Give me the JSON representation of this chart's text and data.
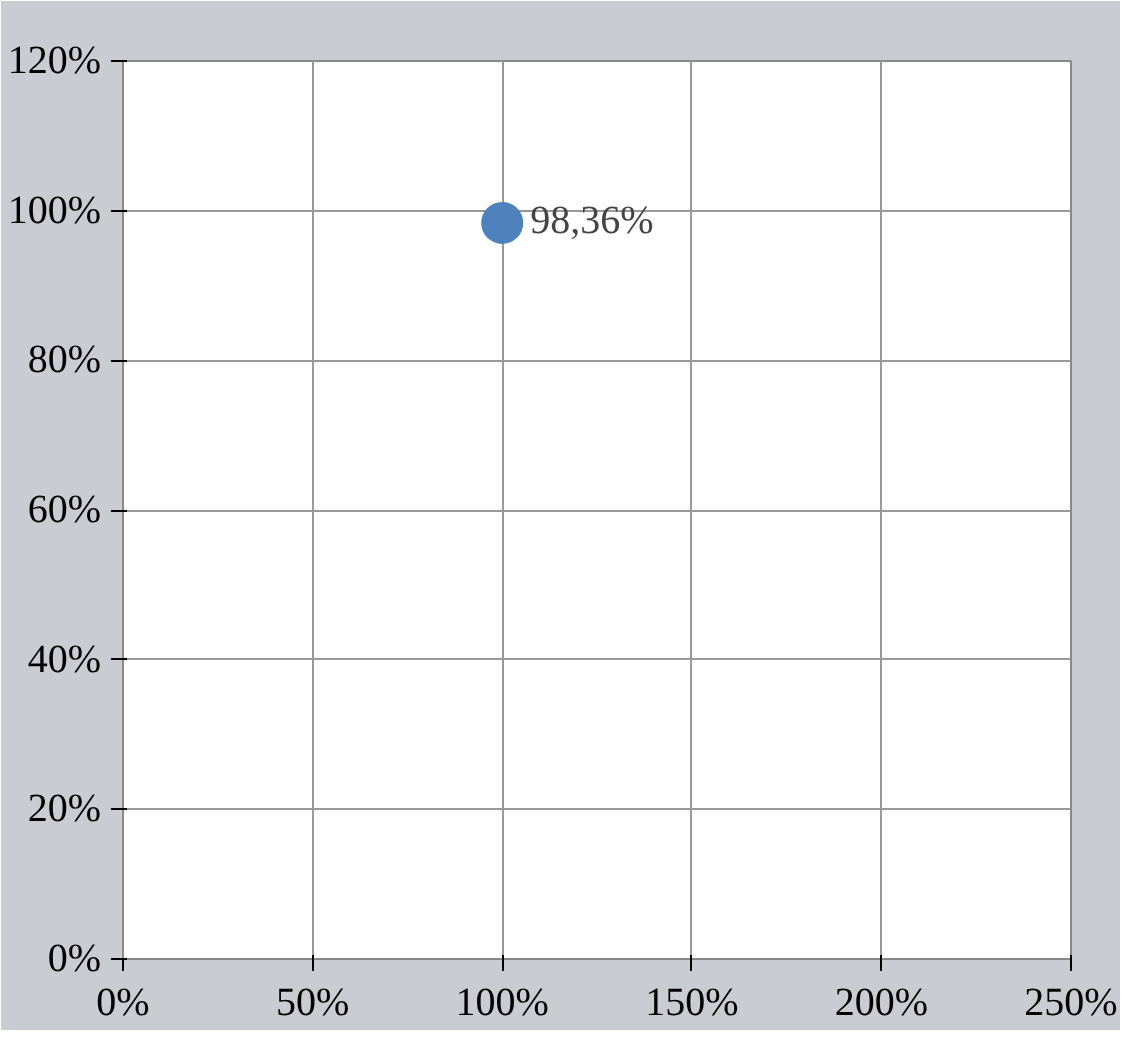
{
  "chart_data": {
    "type": "scatter",
    "x": [
      100
    ],
    "values": [
      98.36
    ],
    "color": "#4f81bd",
    "marker": "circle",
    "value_labels": [
      "98,36%"
    ],
    "xlim": [
      0,
      250
    ],
    "xticks": [
      {
        "value": 0,
        "label": "0%"
      },
      {
        "value": 50,
        "label": "50%"
      },
      {
        "value": 100,
        "label": "100%"
      },
      {
        "value": 150,
        "label": "150%"
      },
      {
        "value": 200,
        "label": "200%"
      },
      {
        "value": 250,
        "label": "250%"
      }
    ],
    "ylim": [
      0,
      120
    ],
    "yticks": [
      {
        "value": 0,
        "label": "0%"
      },
      {
        "value": 20,
        "label": "20%"
      },
      {
        "value": 40,
        "label": "40%"
      },
      {
        "value": 60,
        "label": "60%"
      },
      {
        "value": 80,
        "label": "80%"
      },
      {
        "value": 100,
        "label": "100%"
      },
      {
        "value": 120,
        "label": "120%"
      }
    ],
    "grid": true
  }
}
